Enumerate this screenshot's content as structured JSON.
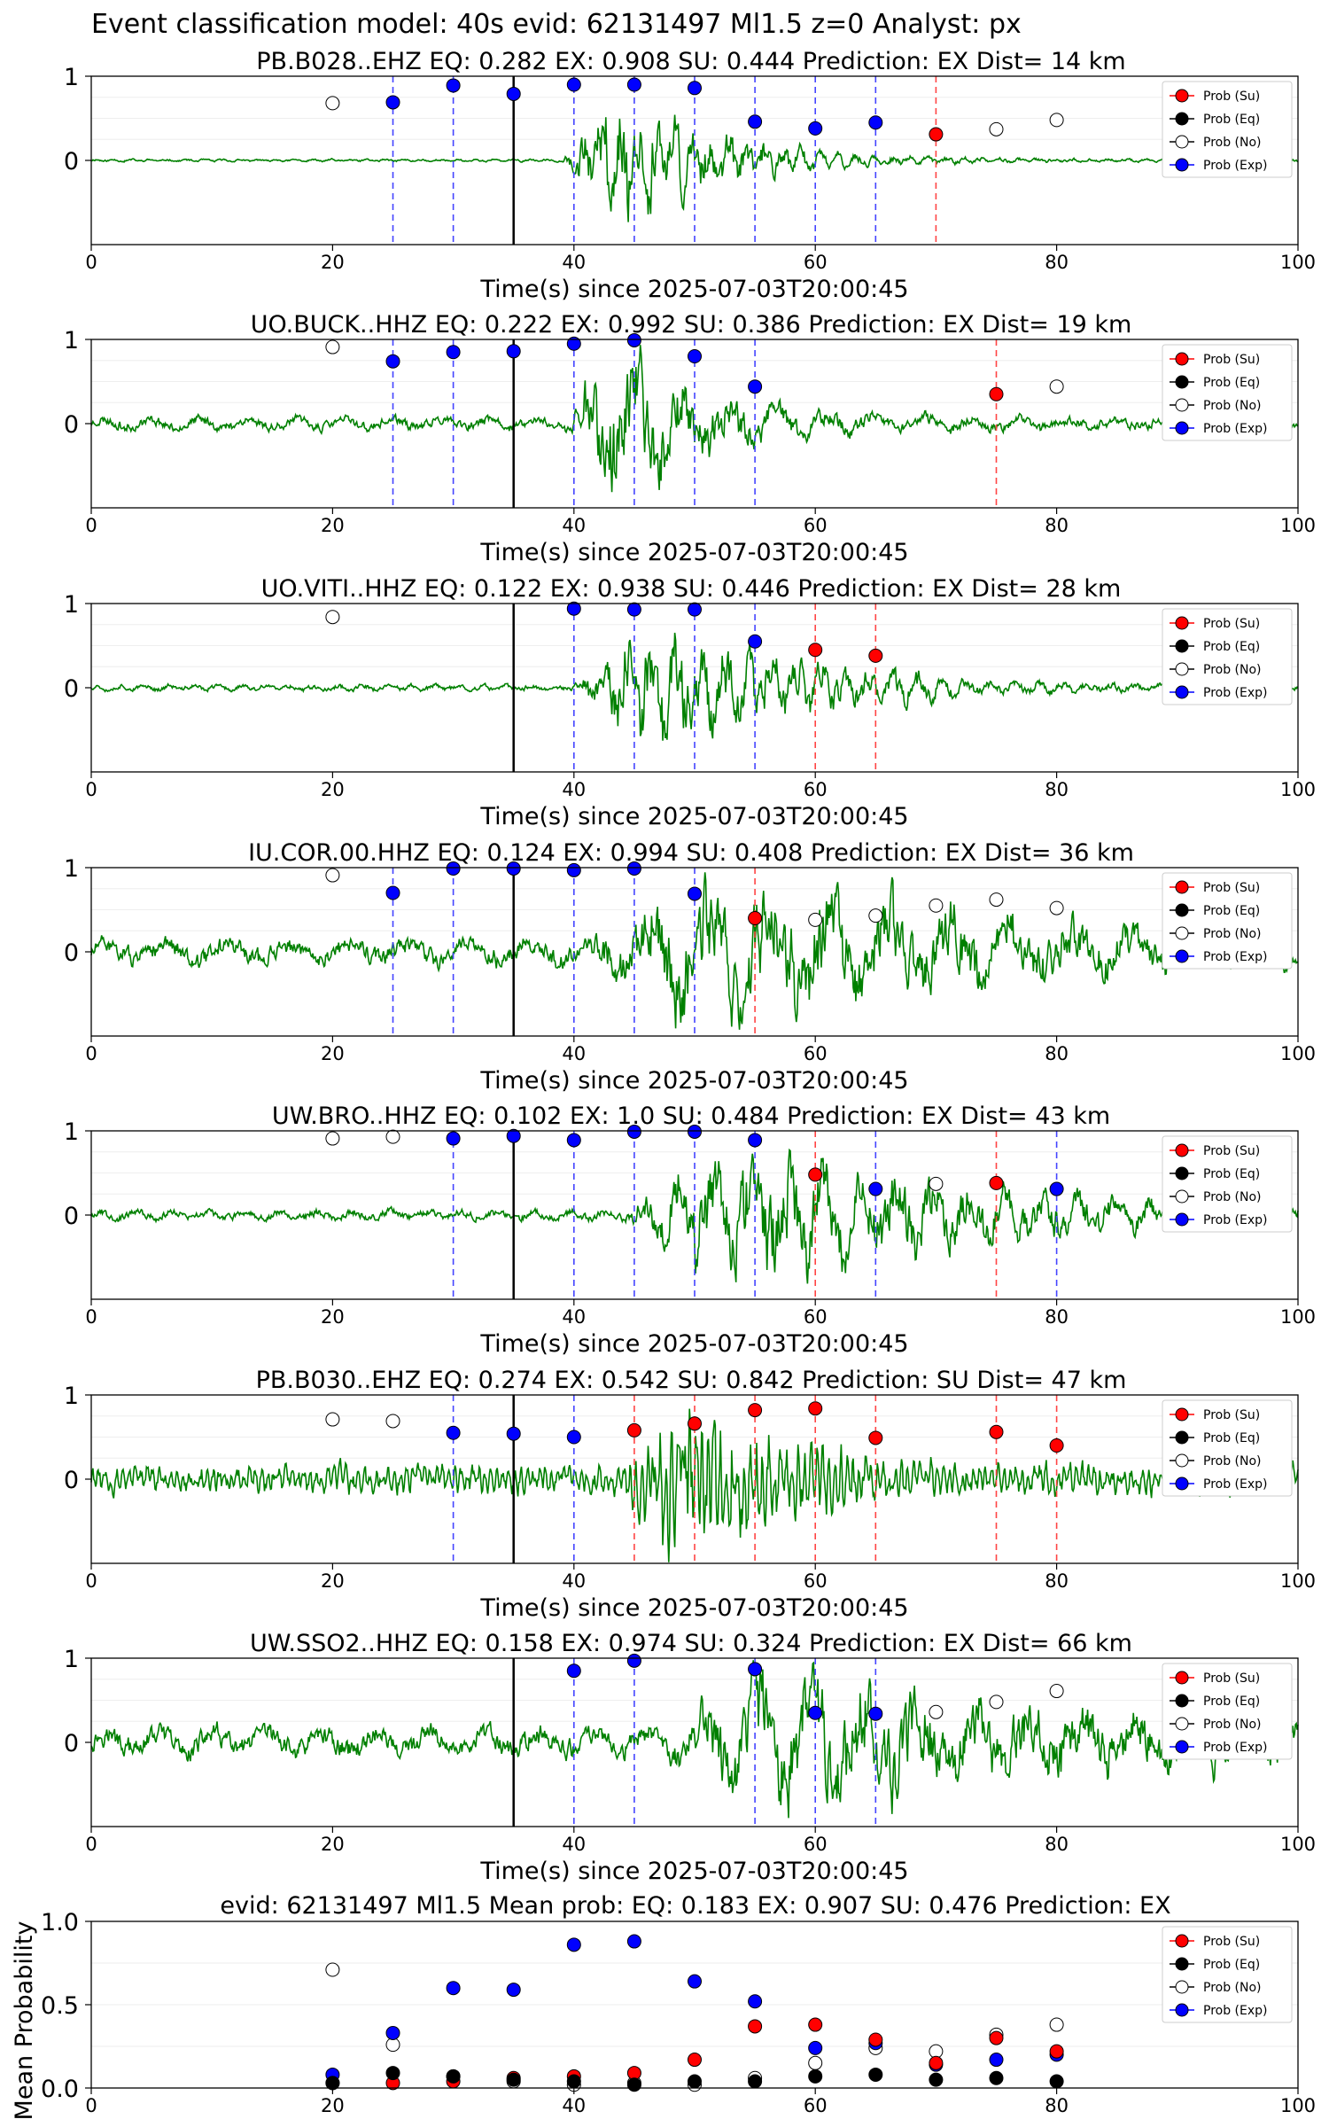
{
  "figure": {
    "title": "Event classification model: 40s evid: 62131497 Ml1.5 z=0 Analyst: px"
  },
  "legend_labels": [
    "Prob (Su)",
    "Prob (Eq)",
    "Prob (No)",
    "Prob (Exp)"
  ],
  "colors": {
    "su": "#ff0000",
    "eq": "#000000",
    "no": "#ffffff",
    "exp": "#0000ff",
    "waveform": "#008000",
    "exp_line": "#4444ff",
    "su_line": "#ff4444",
    "origin_line": "#000000"
  },
  "chart_data": [
    {
      "type": "line",
      "title": "PB.B028..EHZ   EQ: 0.282  EX: 0.908  SU: 0.444   Prediction: EX    Dist= 14 km",
      "xlabel": "Time(s) since 2025-07-03T20:00:45",
      "xlim": [
        0,
        100
      ],
      "ylim": [
        -1,
        1
      ],
      "xticks": [
        "0",
        "20",
        "40",
        "60",
        "80",
        "100"
      ],
      "yticks": [
        "1",
        "0"
      ],
      "origin_time": 35,
      "waveform": {
        "signal_start": 39,
        "signal_end": 60,
        "noise_amp": 0.02,
        "signal_amp": 0.8,
        "seed": 11,
        "period": 1.5
      },
      "exp_lines": [
        25,
        30,
        40,
        45,
        50,
        55,
        60,
        65
      ],
      "su_lines": [
        70
      ],
      "points": {
        "no": [
          [
            20,
            0.68
          ],
          [
            75,
            0.37
          ],
          [
            80,
            0.48
          ]
        ],
        "exp": [
          [
            25,
            0.69
          ],
          [
            30,
            0.89
          ],
          [
            35,
            0.79
          ],
          [
            40,
            0.9
          ],
          [
            45,
            0.9
          ],
          [
            50,
            0.86
          ],
          [
            55,
            0.46
          ],
          [
            60,
            0.38
          ],
          [
            65,
            0.45
          ]
        ],
        "su": [
          [
            70,
            0.31
          ]
        ],
        "eq": []
      }
    },
    {
      "type": "line",
      "title": "UO.BUCK..HHZ   EQ: 0.222  EX: 0.992  SU: 0.386   Prediction: EX    Dist= 19 km",
      "xlabel": "Time(s) since 2025-07-03T20:00:45",
      "xlim": [
        0,
        100
      ],
      "ylim": [
        -1,
        1
      ],
      "xticks": [
        "0",
        "20",
        "40",
        "60",
        "80",
        "100"
      ],
      "yticks": [
        "1",
        "0"
      ],
      "origin_time": 35,
      "waveform": {
        "signal_start": 39,
        "signal_end": 58,
        "noise_amp": 0.1,
        "signal_amp": 0.85,
        "seed": 23,
        "period": 4
      },
      "exp_lines": [
        25,
        30,
        40,
        45,
        50,
        55
      ],
      "su_lines": [
        75
      ],
      "points": {
        "no": [
          [
            20,
            0.91
          ],
          [
            80,
            0.44
          ]
        ],
        "exp": [
          [
            25,
            0.74
          ],
          [
            30,
            0.85
          ],
          [
            35,
            0.86
          ],
          [
            40,
            0.95
          ],
          [
            45,
            0.99
          ],
          [
            50,
            0.8
          ],
          [
            55,
            0.44
          ]
        ],
        "su": [
          [
            75,
            0.35
          ]
        ],
        "eq": []
      }
    },
    {
      "type": "line",
      "title": "UO.VITI..HHZ   EQ: 0.122  EX: 0.938  SU: 0.446   Prediction: EX    Dist= 28 km",
      "xlabel": "Time(s) since 2025-07-03T20:00:45",
      "xlim": [
        0,
        100
      ],
      "ylim": [
        -1,
        1
      ],
      "xticks": [
        "0",
        "20",
        "40",
        "60",
        "80",
        "100"
      ],
      "yticks": [
        "1",
        "0"
      ],
      "origin_time": 35,
      "waveform": {
        "signal_start": 40,
        "signal_end": 70,
        "noise_amp": 0.05,
        "signal_amp": 0.75,
        "seed": 37,
        "period": 2
      },
      "exp_lines": [
        40,
        45,
        50,
        55
      ],
      "su_lines": [
        60,
        65
      ],
      "points": {
        "no": [
          [
            20,
            0.84
          ]
        ],
        "exp": [
          [
            40,
            0.94
          ],
          [
            45,
            0.93
          ],
          [
            50,
            0.93
          ],
          [
            55,
            0.55
          ]
        ],
        "su": [
          [
            60,
            0.45
          ],
          [
            65,
            0.38
          ]
        ],
        "eq": []
      }
    },
    {
      "type": "line",
      "title": "IU.COR.00.HHZ   EQ: 0.124  EX: 0.994  SU: 0.408   Prediction: EX    Dist= 36 km",
      "xlabel": "Time(s) since 2025-07-03T20:00:45",
      "xlim": [
        0,
        100
      ],
      "ylim": [
        -1,
        1
      ],
      "xticks": [
        "0",
        "20",
        "40",
        "60",
        "80",
        "100"
      ],
      "yticks": [
        "1",
        "0"
      ],
      "origin_time": 35,
      "waveform": {
        "signal_start": 41,
        "signal_end": 92,
        "noise_amp": 0.2,
        "signal_amp": 0.8,
        "seed": 51,
        "period": 5
      },
      "exp_lines": [
        25,
        30,
        40,
        45,
        50
      ],
      "su_lines": [
        55
      ],
      "points": {
        "no": [
          [
            20,
            0.91
          ],
          [
            60,
            0.38
          ],
          [
            65,
            0.43
          ],
          [
            70,
            0.55
          ],
          [
            75,
            0.62
          ],
          [
            80,
            0.52
          ]
        ],
        "exp": [
          [
            25,
            0.7
          ],
          [
            30,
            0.99
          ],
          [
            35,
            0.99
          ],
          [
            40,
            0.97
          ],
          [
            45,
            0.99
          ],
          [
            50,
            0.69
          ]
        ],
        "su": [
          [
            55,
            0.4
          ]
        ],
        "eq": []
      }
    },
    {
      "type": "line",
      "title": "UW.BRO..HHZ   EQ: 0.102  EX: 1.0  SU: 0.484   Prediction: EX    Dist= 43 km",
      "xlabel": "Time(s) since 2025-07-03T20:00:45",
      "xlim": [
        0,
        100
      ],
      "ylim": [
        -1,
        1
      ],
      "xticks": [
        "0",
        "20",
        "40",
        "60",
        "80",
        "100"
      ],
      "yticks": [
        "1",
        "0"
      ],
      "origin_time": 35,
      "waveform": {
        "signal_start": 44,
        "signal_end": 88,
        "noise_amp": 0.08,
        "signal_amp": 0.8,
        "seed": 67,
        "period": 3
      },
      "exp_lines": [
        30,
        40,
        45,
        50,
        55,
        65,
        80
      ],
      "su_lines": [
        60,
        75
      ],
      "points": {
        "no": [
          [
            20,
            0.91
          ],
          [
            25,
            0.93
          ],
          [
            70,
            0.37
          ]
        ],
        "exp": [
          [
            30,
            0.91
          ],
          [
            35,
            0.94
          ],
          [
            40,
            0.89
          ],
          [
            45,
            0.99
          ],
          [
            50,
            0.99
          ],
          [
            55,
            0.89
          ],
          [
            65,
            0.31
          ],
          [
            80,
            0.31
          ]
        ],
        "su": [
          [
            60,
            0.48
          ],
          [
            75,
            0.38
          ]
        ],
        "eq": []
      }
    },
    {
      "type": "line",
      "title": "PB.B030..EHZ   EQ: 0.274  EX: 0.542  SU: 0.842   Prediction: SU    Dist= 47 km",
      "xlabel": "Time(s) since 2025-07-03T20:00:45",
      "xlim": [
        0,
        100
      ],
      "ylim": [
        -1,
        1
      ],
      "xticks": [
        "0",
        "20",
        "40",
        "60",
        "80",
        "100"
      ],
      "yticks": [
        "1",
        "0"
      ],
      "origin_time": 35,
      "waveform": {
        "signal_start": 44,
        "signal_end": 65,
        "noise_amp": 0.2,
        "signal_amp": 0.85,
        "seed": 83,
        "period": 0.5
      },
      "exp_lines": [
        30,
        40
      ],
      "su_lines": [
        45,
        50,
        55,
        60,
        65,
        75,
        80
      ],
      "points": {
        "no": [
          [
            20,
            0.71
          ],
          [
            25,
            0.69
          ]
        ],
        "exp": [
          [
            30,
            0.55
          ],
          [
            35,
            0.54
          ],
          [
            40,
            0.5
          ]
        ],
        "su": [
          [
            45,
            0.58
          ],
          [
            50,
            0.66
          ],
          [
            55,
            0.82
          ],
          [
            60,
            0.84
          ],
          [
            65,
            0.49
          ],
          [
            75,
            0.56
          ],
          [
            80,
            0.4
          ]
        ],
        "eq": []
      }
    },
    {
      "type": "line",
      "title": "UW.SSO2..HHZ   EQ: 0.158  EX: 0.974  SU: 0.324   Prediction: EX    Dist= 66 km",
      "xlabel": "Time(s) since 2025-07-03T20:00:45",
      "xlim": [
        0,
        100
      ],
      "ylim": [
        -1,
        1
      ],
      "xticks": [
        "0",
        "20",
        "40",
        "60",
        "80",
        "100"
      ],
      "yticks": [
        "1",
        "0"
      ],
      "origin_time": 35,
      "waveform": {
        "signal_start": 47,
        "signal_end": 95,
        "noise_amp": 0.22,
        "signal_amp": 0.75,
        "seed": 97,
        "period": 4.5
      },
      "exp_lines": [
        40,
        45,
        55,
        60,
        65
      ],
      "su_lines": [],
      "points": {
        "no": [
          [
            70,
            0.36
          ],
          [
            75,
            0.48
          ],
          [
            80,
            0.61
          ]
        ],
        "exp": [
          [
            40,
            0.85
          ],
          [
            45,
            0.97
          ],
          [
            55,
            0.87
          ],
          [
            60,
            0.35
          ],
          [
            65,
            0.34
          ]
        ],
        "su": [],
        "eq": []
      }
    },
    {
      "type": "scatter",
      "title": "evid: 62131497  Ml1.5   Mean prob:   EQ: 0.183  EX: 0.907  SU: 0.476   Prediction: EX",
      "ylabel": "Mean Probability",
      "xlim": [
        0,
        100
      ],
      "ylim": [
        0,
        1
      ],
      "xticks": [
        "0",
        "20",
        "40",
        "60",
        "80",
        "100"
      ],
      "yticks": [
        "0.0",
        "0.5",
        "1.0"
      ],
      "ytick_values": [
        0,
        0.5,
        1
      ],
      "points": {
        "no": [
          [
            20,
            0.71
          ],
          [
            25,
            0.26
          ],
          [
            30,
            0.07
          ],
          [
            35,
            0.04
          ],
          [
            40,
            0.02
          ],
          [
            45,
            0.03
          ],
          [
            50,
            0.02
          ],
          [
            55,
            0.06
          ],
          [
            60,
            0.15
          ],
          [
            65,
            0.24
          ],
          [
            70,
            0.22
          ],
          [
            75,
            0.32
          ],
          [
            80,
            0.38
          ]
        ],
        "exp": [
          [
            20,
            0.08
          ],
          [
            25,
            0.33
          ],
          [
            30,
            0.6
          ],
          [
            35,
            0.59
          ],
          [
            40,
            0.86
          ],
          [
            45,
            0.88
          ],
          [
            50,
            0.64
          ],
          [
            55,
            0.52
          ],
          [
            60,
            0.24
          ],
          [
            65,
            0.27
          ],
          [
            70,
            0.14
          ],
          [
            75,
            0.17
          ],
          [
            80,
            0.2
          ]
        ],
        "su": [
          [
            20,
            0.03
          ],
          [
            25,
            0.03
          ],
          [
            30,
            0.04
          ],
          [
            35,
            0.06
          ],
          [
            40,
            0.07
          ],
          [
            45,
            0.09
          ],
          [
            50,
            0.17
          ],
          [
            55,
            0.37
          ],
          [
            60,
            0.38
          ],
          [
            65,
            0.29
          ],
          [
            70,
            0.15
          ],
          [
            75,
            0.3
          ],
          [
            80,
            0.22
          ]
        ],
        "eq": [
          [
            20,
            0.03
          ],
          [
            25,
            0.09
          ],
          [
            30,
            0.07
          ],
          [
            35,
            0.05
          ],
          [
            40,
            0.04
          ],
          [
            45,
            0.02
          ],
          [
            50,
            0.04
          ],
          [
            55,
            0.04
          ],
          [
            60,
            0.07
          ],
          [
            65,
            0.08
          ],
          [
            70,
            0.05
          ],
          [
            75,
            0.06
          ],
          [
            80,
            0.04
          ]
        ]
      }
    }
  ]
}
